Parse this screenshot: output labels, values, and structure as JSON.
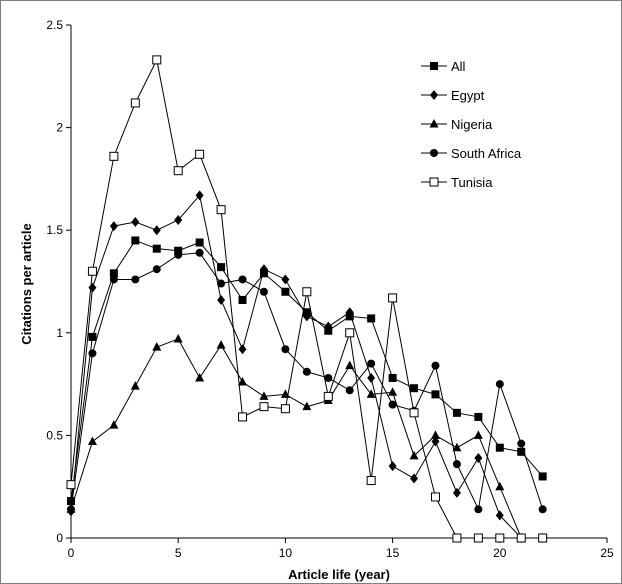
{
  "chart_data": {
    "type": "line",
    "title": "",
    "xlabel": "Article life (year)",
    "ylabel": "Citations per article",
    "xlim": [
      0,
      25
    ],
    "ylim": [
      0,
      2.5
    ],
    "x_ticks": [
      0,
      5,
      10,
      15,
      20,
      25
    ],
    "y_ticks": [
      0,
      0.5,
      1,
      1.5,
      2,
      2.5
    ],
    "x_tick_labels": [
      "0",
      "5",
      "10",
      "15",
      "20",
      "25"
    ],
    "y_tick_labels": [
      "0",
      "0.5",
      "1",
      "1.5",
      "2",
      "2.5"
    ],
    "grid": false,
    "legend_position": "top-right",
    "series": [
      {
        "name": "All",
        "marker": "square-filled",
        "x": [
          0,
          1,
          2,
          3,
          4,
          5,
          6,
          7,
          8,
          9,
          10,
          11,
          12,
          13,
          14,
          15,
          16,
          17,
          18,
          19,
          20,
          21,
          22
        ],
        "y": [
          0.18,
          0.98,
          1.29,
          1.45,
          1.41,
          1.4,
          1.44,
          1.32,
          1.16,
          1.29,
          1.2,
          1.1,
          1.01,
          1.08,
          1.07,
          0.78,
          0.73,
          0.7,
          0.61,
          0.59,
          0.44,
          0.42,
          0.3
        ]
      },
      {
        "name": "Egypt",
        "marker": "diamond-filled",
        "x": [
          0,
          1,
          2,
          3,
          4,
          5,
          6,
          7,
          8,
          9,
          10,
          11,
          12,
          13,
          14,
          15,
          16,
          17,
          18,
          19,
          20,
          21,
          22
        ],
        "y": [
          0.13,
          1.22,
          1.52,
          1.54,
          1.5,
          1.55,
          1.67,
          1.16,
          0.92,
          1.31,
          1.26,
          1.08,
          1.03,
          1.1,
          0.78,
          0.35,
          0.29,
          0.47,
          0.22,
          0.39,
          0.11,
          0.0,
          0.0
        ]
      },
      {
        "name": "Nigeria",
        "marker": "triangle-filled",
        "x": [
          0,
          1,
          2,
          3,
          4,
          5,
          6,
          7,
          8,
          9,
          10,
          11,
          12,
          13,
          14,
          15,
          16,
          17,
          18,
          19,
          20,
          21,
          22
        ],
        "y": [
          0.14,
          0.47,
          0.55,
          0.74,
          0.93,
          0.97,
          0.78,
          0.94,
          0.76,
          0.69,
          0.7,
          0.64,
          0.67,
          0.84,
          0.7,
          0.71,
          0.4,
          0.5,
          0.44,
          0.5,
          0.25,
          0.0,
          0.0
        ]
      },
      {
        "name": "South Africa",
        "marker": "circle-filled",
        "x": [
          0,
          1,
          2,
          3,
          4,
          5,
          6,
          7,
          8,
          9,
          10,
          11,
          12,
          13,
          14,
          15,
          16,
          17,
          18,
          19,
          20,
          21,
          22
        ],
        "y": [
          0.14,
          0.9,
          1.26,
          1.26,
          1.31,
          1.38,
          1.39,
          1.24,
          1.26,
          1.2,
          0.92,
          0.81,
          0.78,
          0.72,
          0.85,
          0.65,
          0.62,
          0.84,
          0.36,
          0.14,
          0.75,
          0.46,
          0.14
        ]
      },
      {
        "name": "Tunisia",
        "marker": "square-open",
        "x": [
          0,
          1,
          2,
          3,
          4,
          5,
          6,
          7,
          8,
          9,
          10,
          11,
          12,
          13,
          14,
          15,
          16,
          17,
          18,
          19,
          20,
          21,
          22
        ],
        "y": [
          0.26,
          1.3,
          1.86,
          2.12,
          2.33,
          1.79,
          1.87,
          1.6,
          0.59,
          0.64,
          0.63,
          1.2,
          0.69,
          1.0,
          0.28,
          1.17,
          0.61,
          0.2,
          0.0,
          0.0,
          0.0,
          0.0,
          0.0
        ]
      }
    ]
  }
}
